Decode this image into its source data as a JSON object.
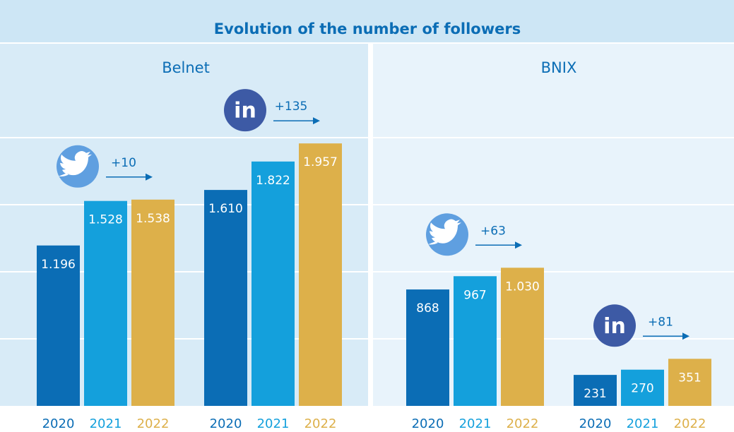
{
  "chart_data": {
    "type": "bar",
    "title": "Evolution of the number of followers",
    "colors": [
      "#0b6db5",
      "#14a0dc",
      "#ddb04a"
    ],
    "ylim": [
      0,
      2000
    ],
    "yticks": [
      500,
      1000,
      1500,
      2000
    ],
    "grid": true,
    "panels": [
      {
        "name": "Belnet",
        "groups": [
          {
            "categories": [
              "2020",
              "2021",
              "2022"
            ],
            "values": [
              1196,
              1528,
              1538
            ],
            "value_labels": [
              "1.196",
              "1.528",
              "1.538"
            ],
            "change": {
              "value": 10,
              "label": "+10"
            }
          },
          {
            "icon_label": "in",
            "categories": [
              "2020",
              "2021",
              "2022"
            ],
            "values": [
              1610,
              1822,
              1957
            ],
            "value_labels": [
              "1.610",
              "1.822",
              "1.957"
            ],
            "change": {
              "value": 135,
              "label": "+135"
            }
          }
        ]
      },
      {
        "name": "BNIX",
        "groups": [
          {
            "categories": [
              "2020",
              "2021",
              "2022"
            ],
            "values": [
              868,
              967,
              1030
            ],
            "value_labels": [
              "868",
              "967",
              "1.030"
            ],
            "change": {
              "value": 63,
              "label": "+63"
            }
          },
          {
            "icon_label": "in",
            "categories": [
              "2020",
              "2021",
              "2022"
            ],
            "values": [
              231,
              270,
              351
            ],
            "change": {
              "value": 81,
              "label": "+81"
            }
          }
        ]
      }
    ]
  }
}
